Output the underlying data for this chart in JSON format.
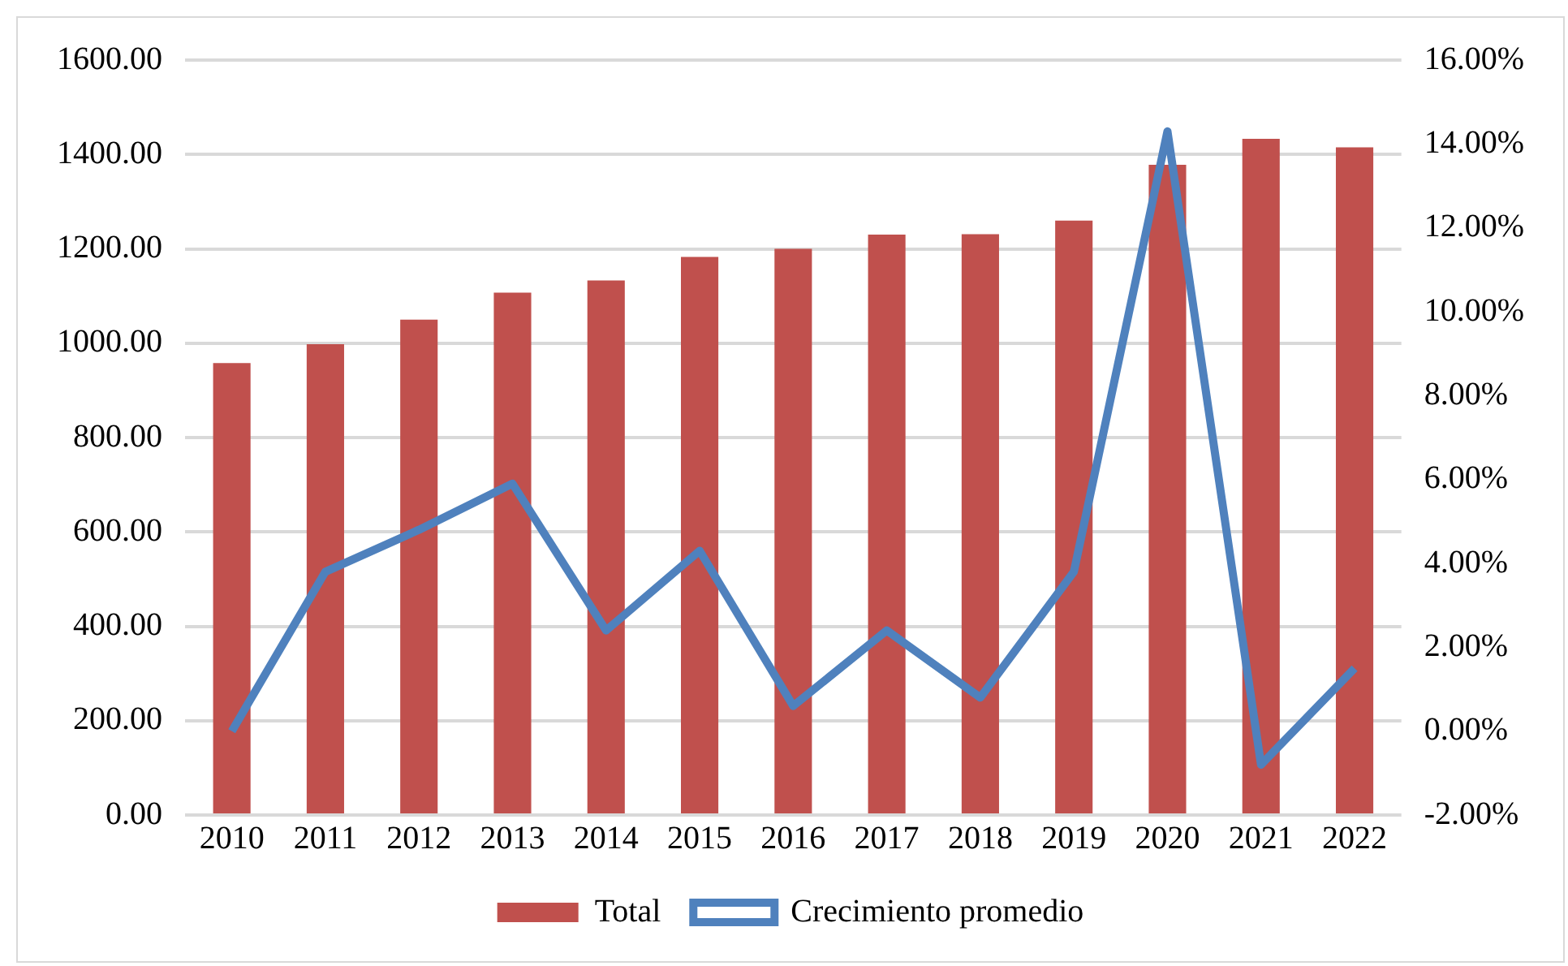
{
  "chart_data": {
    "type": "bar",
    "categories": [
      "2010",
      "2011",
      "2012",
      "2013",
      "2014",
      "2015",
      "2016",
      "2017",
      "2018",
      "2019",
      "2020",
      "2021",
      "2022"
    ],
    "series": [
      {
        "name": "Total",
        "color": "#c0504d",
        "values": [
          958,
          998,
          1050,
          1107,
          1133,
          1183,
          1200,
          1230,
          1231,
          1260,
          1378,
          1433,
          1415
        ]
      },
      {
        "name": "Crecimiento promedio",
        "type": "line",
        "axis": "y2",
        "color": "#4f81bd",
        "values": [
          0.0,
          3.8,
          4.8,
          5.9,
          2.4,
          4.3,
          0.6,
          2.4,
          0.8,
          3.8,
          14.3,
          -0.8,
          1.5
        ]
      }
    ],
    "ylim": [
      0,
      1600
    ],
    "yticks": [
      {
        "value": 0,
        "label": "0.00"
      },
      {
        "value": 200,
        "label": "200.00"
      },
      {
        "value": 400,
        "label": "400.00"
      },
      {
        "value": 600,
        "label": "600.00"
      },
      {
        "value": 800,
        "label": "800.00"
      },
      {
        "value": 1000,
        "label": "1000.00"
      },
      {
        "value": 1200,
        "label": "1200.00"
      },
      {
        "value": 1400,
        "label": "1400.00"
      },
      {
        "value": 1600,
        "label": "1600.00"
      }
    ],
    "y2lim": [
      -2,
      16
    ],
    "y2ticks": [
      {
        "value": -2,
        "label": "-2.00%"
      },
      {
        "value": 0,
        "label": "0.00%"
      },
      {
        "value": 2,
        "label": "2.00%"
      },
      {
        "value": 4,
        "label": "4.00%"
      },
      {
        "value": 6,
        "label": "6.00%"
      },
      {
        "value": 8,
        "label": "8.00%"
      },
      {
        "value": 10,
        "label": "10.00%"
      },
      {
        "value": 12,
        "label": "12.00%"
      },
      {
        "value": 14,
        "label": "14.00%"
      },
      {
        "value": 16,
        "label": "16.00%"
      }
    ],
    "grid": "y",
    "legend": "bottom",
    "marker": "none",
    "line_style": "solid"
  }
}
